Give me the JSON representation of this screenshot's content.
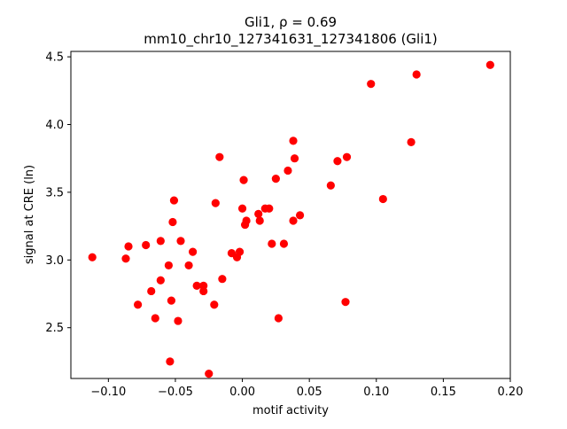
{
  "chart_data": {
    "type": "scatter",
    "title_line1": "Gli1, ρ = 0.69",
    "title_line2": "mm10_chr10_127341631_127341806 (Gli1)",
    "xlabel": "motif activity",
    "ylabel": "signal at CRE (ln)",
    "xlim": [
      -0.128,
      0.2
    ],
    "ylim": [
      2.125,
      4.54
    ],
    "xticks": [
      -0.1,
      -0.05,
      0.0,
      0.05,
      0.1,
      0.15,
      0.2
    ],
    "xtick_labels": [
      "−0.10",
      "−0.05",
      "0.00",
      "0.05",
      "0.10",
      "0.15",
      "0.20"
    ],
    "yticks": [
      2.5,
      3.0,
      3.5,
      4.0,
      4.5
    ],
    "ytick_labels": [
      "2.5",
      "3.0",
      "3.5",
      "4.0",
      "4.5"
    ],
    "grid": false,
    "marker_color": "#ff0000",
    "points": [
      [
        -0.112,
        3.02
      ],
      [
        -0.087,
        3.01
      ],
      [
        -0.085,
        3.1
      ],
      [
        -0.078,
        2.67
      ],
      [
        -0.072,
        3.11
      ],
      [
        -0.068,
        2.77
      ],
      [
        -0.065,
        2.57
      ],
      [
        -0.061,
        3.14
      ],
      [
        -0.061,
        2.85
      ],
      [
        -0.055,
        2.96
      ],
      [
        -0.054,
        2.25
      ],
      [
        -0.053,
        2.7
      ],
      [
        -0.052,
        3.28
      ],
      [
        -0.051,
        3.44
      ],
      [
        -0.048,
        2.55
      ],
      [
        -0.046,
        3.14
      ],
      [
        -0.04,
        2.96
      ],
      [
        -0.037,
        3.06
      ],
      [
        -0.034,
        2.81
      ],
      [
        -0.029,
        2.77
      ],
      [
        -0.029,
        2.81
      ],
      [
        -0.025,
        2.16
      ],
      [
        -0.021,
        2.67
      ],
      [
        -0.02,
        3.42
      ],
      [
        -0.017,
        3.76
      ],
      [
        -0.015,
        2.86
      ],
      [
        -0.008,
        3.05
      ],
      [
        -0.004,
        3.02
      ],
      [
        -0.002,
        3.06
      ],
      [
        0.0,
        3.38
      ],
      [
        0.001,
        3.59
      ],
      [
        0.002,
        3.26
      ],
      [
        0.003,
        3.29
      ],
      [
        0.012,
        3.34
      ],
      [
        0.013,
        3.29
      ],
      [
        0.017,
        3.38
      ],
      [
        0.02,
        3.38
      ],
      [
        0.022,
        3.12
      ],
      [
        0.025,
        3.6
      ],
      [
        0.027,
        2.57
      ],
      [
        0.031,
        3.12
      ],
      [
        0.034,
        3.66
      ],
      [
        0.038,
        3.88
      ],
      [
        0.038,
        3.29
      ],
      [
        0.039,
        3.75
      ],
      [
        0.043,
        3.33
      ],
      [
        0.066,
        3.55
      ],
      [
        0.071,
        3.73
      ],
      [
        0.077,
        2.69
      ],
      [
        0.078,
        3.76
      ],
      [
        0.096,
        4.3
      ],
      [
        0.105,
        3.45
      ],
      [
        0.126,
        3.87
      ],
      [
        0.13,
        4.37
      ],
      [
        0.185,
        4.44
      ]
    ]
  }
}
